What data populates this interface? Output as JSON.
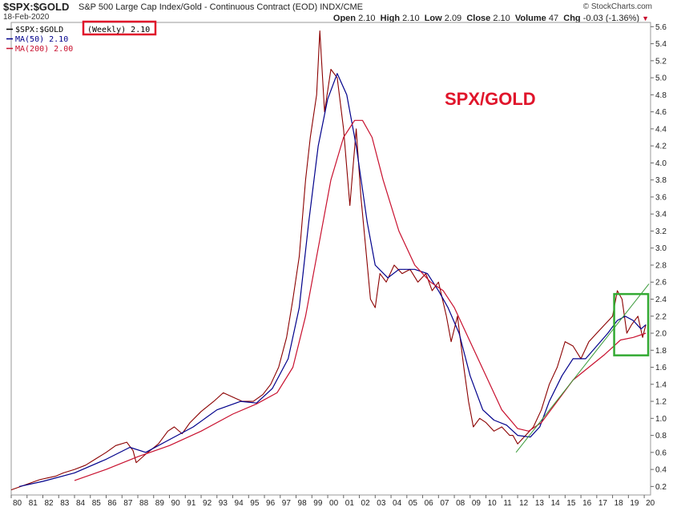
{
  "header": {
    "symbol": "$SPX:$GOLD",
    "description": "S&P 500 Large Cap Index/Gold - Continuous Contract (EOD)  INDX/CME",
    "date": "18-Feb-2020",
    "brand": "© StockCharts.com",
    "open_label": "Open",
    "open": "2.10",
    "high_label": "High",
    "high": "2.10",
    "low_label": "Low",
    "low": "2.09",
    "close_label": "Close",
    "close": "2.10",
    "volume_label": "Volume",
    "volume": "47",
    "chg_label": "Chg",
    "chg": "-0.03 (-1.36%)",
    "chg_arrow": "▼"
  },
  "legend": [
    {
      "label": "$SPX:$GOLD",
      "value": "(Weekly) 2.10",
      "color": "#000000"
    },
    {
      "label": "MA(50) 2.10",
      "color": "#00008b"
    },
    {
      "label": "MA(200) 2.00",
      "color": "#c8102e"
    }
  ],
  "colors": {
    "price": "#8b0000",
    "ma50": "#00008b",
    "ma200": "#c8102e",
    "trend": "#3a9a3a",
    "highlight_box": "#33aa33",
    "legend_box": "#e0152b"
  },
  "chart_data": {
    "type": "line",
    "title": "SPX/GOLD",
    "xlabel": "",
    "ylabel": "",
    "ylim": [
      0.1,
      5.65
    ],
    "y_ticks": [
      0.2,
      0.4,
      0.6,
      0.8,
      1.0,
      1.2,
      1.4,
      1.6,
      1.8,
      2.0,
      2.2,
      2.4,
      2.6,
      2.8,
      3.0,
      3.2,
      3.4,
      3.6,
      3.8,
      4.0,
      4.2,
      4.4,
      4.6,
      4.8,
      5.0,
      5.2,
      5.4,
      5.6
    ],
    "x_tick_labels": [
      "80",
      "81",
      "82",
      "83",
      "84",
      "85",
      "86",
      "87",
      "88",
      "89",
      "90",
      "91",
      "92",
      "93",
      "94",
      "95",
      "96",
      "97",
      "98",
      "99",
      "00",
      "01",
      "02",
      "03",
      "04",
      "05",
      "06",
      "07",
      "08",
      "09",
      "10",
      "11",
      "12",
      "13",
      "14",
      "15",
      "16",
      "17",
      "18",
      "19",
      "20"
    ],
    "xlim": [
      1980.0,
      2020.4
    ],
    "series": [
      {
        "name": "$SPX:$GOLD (Weekly)",
        "x": [
          1980.0,
          1980.6,
          1981.2,
          1981.8,
          1982.3,
          1982.8,
          1983.3,
          1984.0,
          1984.7,
          1985.3,
          1986.0,
          1986.6,
          1987.3,
          1987.7,
          1987.9,
          1988.5,
          1989.3,
          1989.9,
          1990.3,
          1990.8,
          1991.3,
          1992.0,
          1992.8,
          1993.4,
          1994.0,
          1994.6,
          1995.3,
          1995.9,
          1996.4,
          1996.9,
          1997.4,
          1997.8,
          1998.2,
          1998.6,
          1998.9,
          1999.3,
          1999.5,
          1999.8,
          2000.2,
          2000.6,
          2001.0,
          2001.4,
          2001.8,
          2002.1,
          2002.4,
          2002.7,
          2003.0,
          2003.3,
          2003.7,
          2004.2,
          2004.7,
          2005.2,
          2005.7,
          2006.2,
          2006.6,
          2007.0,
          2007.5,
          2007.8,
          2008.2,
          2008.6,
          2008.9,
          2009.2,
          2009.6,
          2010.0,
          2010.5,
          2011.0,
          2011.5,
          2011.7,
          2012.0,
          2012.5,
          2013.0,
          2013.5,
          2014.0,
          2014.5,
          2015.0,
          2015.5,
          2016.0,
          2016.5,
          2017.0,
          2017.5,
          2018.0,
          2018.3,
          2018.6,
          2018.9,
          2019.2,
          2019.6,
          2019.9,
          2020.1
        ],
        "values": [
          0.16,
          0.2,
          0.24,
          0.28,
          0.3,
          0.32,
          0.36,
          0.4,
          0.45,
          0.52,
          0.6,
          0.68,
          0.72,
          0.62,
          0.48,
          0.58,
          0.7,
          0.85,
          0.9,
          0.82,
          0.95,
          1.08,
          1.2,
          1.3,
          1.25,
          1.2,
          1.2,
          1.28,
          1.4,
          1.6,
          1.95,
          2.4,
          2.9,
          3.8,
          4.3,
          4.8,
          5.55,
          4.6,
          5.1,
          5.0,
          4.4,
          3.5,
          4.4,
          3.6,
          3.0,
          2.4,
          2.3,
          2.7,
          2.6,
          2.8,
          2.7,
          2.75,
          2.6,
          2.7,
          2.5,
          2.6,
          2.2,
          1.9,
          2.2,
          1.6,
          1.2,
          0.9,
          1.0,
          0.95,
          0.85,
          0.9,
          0.8,
          0.8,
          0.7,
          0.8,
          0.9,
          1.1,
          1.4,
          1.6,
          1.9,
          1.85,
          1.7,
          1.9,
          2.0,
          2.1,
          2.2,
          2.5,
          2.4,
          2.0,
          2.1,
          2.2,
          1.95,
          2.1
        ]
      },
      {
        "name": "MA(50)",
        "x": [
          1980.5,
          1982.0,
          1984.0,
          1986.0,
          1987.5,
          1988.5,
          1990.0,
          1991.5,
          1993.0,
          1994.5,
          1995.5,
          1996.5,
          1997.5,
          1998.2,
          1998.8,
          1999.4,
          2000.0,
          2000.6,
          2001.2,
          2001.8,
          2002.5,
          2003.0,
          2003.8,
          2004.5,
          2005.5,
          2006.3,
          2007.0,
          2007.6,
          2008.3,
          2009.0,
          2009.8,
          2010.5,
          2011.3,
          2012.0,
          2012.8,
          2013.4,
          2014.0,
          2014.8,
          2015.5,
          2016.3,
          2017.0,
          2017.7,
          2018.3,
          2018.8,
          2019.3,
          2019.8,
          2020.1
        ],
        "values": [
          0.2,
          0.26,
          0.36,
          0.52,
          0.66,
          0.6,
          0.75,
          0.9,
          1.1,
          1.2,
          1.18,
          1.35,
          1.7,
          2.3,
          3.3,
          4.2,
          4.75,
          5.05,
          4.8,
          4.2,
          3.3,
          2.8,
          2.65,
          2.75,
          2.75,
          2.7,
          2.5,
          2.3,
          2.0,
          1.5,
          1.1,
          0.98,
          0.92,
          0.8,
          0.78,
          0.9,
          1.2,
          1.5,
          1.7,
          1.7,
          1.85,
          2.0,
          2.15,
          2.2,
          2.15,
          2.05,
          2.1
        ]
      },
      {
        "name": "MA(200)",
        "x": [
          1984.0,
          1986.0,
          1988.0,
          1990.0,
          1992.0,
          1994.0,
          1995.5,
          1996.8,
          1997.8,
          1998.6,
          1999.4,
          2000.2,
          2001.0,
          2001.7,
          2002.2,
          2002.8,
          2003.5,
          2004.5,
          2005.5,
          2006.5,
          2007.3,
          2008.0,
          2009.0,
          2010.0,
          2011.0,
          2012.0,
          2012.7,
          2013.5,
          2014.5,
          2015.5,
          2016.5,
          2017.5,
          2018.5,
          2019.3,
          2020.1
        ],
        "values": [
          0.27,
          0.4,
          0.55,
          0.68,
          0.85,
          1.05,
          1.17,
          1.3,
          1.6,
          2.2,
          3.0,
          3.8,
          4.3,
          4.5,
          4.5,
          4.3,
          3.8,
          3.2,
          2.8,
          2.6,
          2.5,
          2.3,
          1.9,
          1.5,
          1.1,
          0.88,
          0.85,
          0.95,
          1.2,
          1.45,
          1.6,
          1.75,
          1.92,
          1.95,
          2.0
        ]
      },
      {
        "name": "Trend line",
        "x": [
          2011.9,
          2020.3
        ],
        "values": [
          0.6,
          2.58
        ]
      }
    ],
    "annotations": [
      "SPX/GOLD"
    ]
  }
}
